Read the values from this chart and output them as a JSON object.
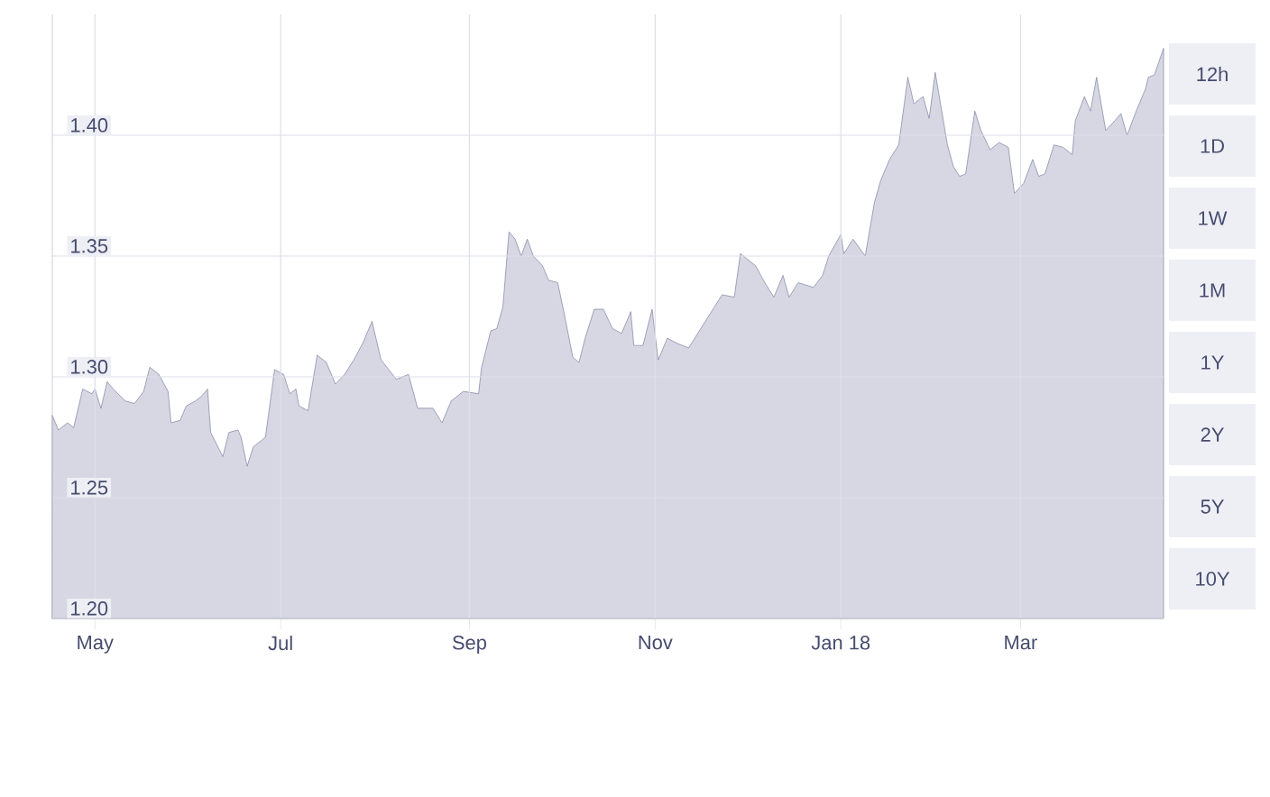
{
  "chart_data": {
    "type": "area",
    "color": "#6b7196",
    "xlim": [
      "2017-04-17",
      "2018-04-17"
    ],
    "xticks": [
      {
        "value": "2017-05-01",
        "label": "May"
      },
      {
        "value": "2017-07-01",
        "label": "Jul"
      },
      {
        "value": "2017-09-01",
        "label": "Sep"
      },
      {
        "value": "2017-11-01",
        "label": "Nov"
      },
      {
        "value": "2018-01-01",
        "label": "Jan 18"
      },
      {
        "value": "2018-03-01",
        "label": "Mar"
      }
    ],
    "ylim": [
      1.2,
      1.45
    ],
    "yticks": [
      {
        "value": 1.2,
        "label": "1.20"
      },
      {
        "value": 1.25,
        "label": "1.25"
      },
      {
        "value": 1.3,
        "label": "1.30"
      },
      {
        "value": 1.35,
        "label": "1.35"
      },
      {
        "value": 1.4,
        "label": "1.40"
      }
    ],
    "grid": true,
    "marker": "none",
    "annotations": [
      "12h",
      "1D",
      "1W",
      "1M",
      "1Y",
      "2Y",
      "5Y",
      "10Y"
    ],
    "x": [
      "2017-04-17",
      "2017-04-19",
      "2017-04-22",
      "2017-04-24",
      "2017-04-27",
      "2017-04-30",
      "2017-05-01",
      "2017-05-03",
      "2017-05-05",
      "2017-05-07",
      "2017-05-11",
      "2017-05-14",
      "2017-05-17",
      "2017-05-19",
      "2017-05-22",
      "2017-05-25",
      "2017-05-26",
      "2017-05-29",
      "2017-05-31",
      "2017-06-03",
      "2017-06-05",
      "2017-06-07",
      "2017-06-08",
      "2017-06-12",
      "2017-06-14",
      "2017-06-17",
      "2017-06-18",
      "2017-06-20",
      "2017-06-22",
      "2017-06-26",
      "2017-06-29",
      "2017-07-02",
      "2017-07-04",
      "2017-07-06",
      "2017-07-07",
      "2017-07-10",
      "2017-07-13",
      "2017-07-16",
      "2017-07-19",
      "2017-07-22",
      "2017-07-25",
      "2017-07-28",
      "2017-07-31",
      "2017-08-03",
      "2017-08-08",
      "2017-08-12",
      "2017-08-15",
      "2017-08-20",
      "2017-08-23",
      "2017-08-26",
      "2017-08-30",
      "2017-09-04",
      "2017-09-05",
      "2017-09-08",
      "2017-09-10",
      "2017-09-12",
      "2017-09-14",
      "2017-09-16",
      "2017-09-18",
      "2017-09-20",
      "2017-09-22",
      "2017-09-25",
      "2017-09-27",
      "2017-09-30",
      "2017-10-02",
      "2017-10-05",
      "2017-10-07",
      "2017-10-09",
      "2017-10-12",
      "2017-10-15",
      "2017-10-18",
      "2017-10-21",
      "2017-10-24",
      "2017-10-25",
      "2017-10-28",
      "2017-10-31",
      "2017-11-02",
      "2017-11-05",
      "2017-11-08",
      "2017-11-12",
      "2017-11-17",
      "2017-11-23",
      "2017-11-27",
      "2017-11-29",
      "2017-12-04",
      "2017-12-07",
      "2017-12-10",
      "2017-12-13",
      "2017-12-15",
      "2017-12-18",
      "2017-12-23",
      "2017-12-26",
      "2017-12-28",
      "2018-01-01",
      "2018-01-02",
      "2018-01-05",
      "2018-01-09",
      "2018-01-12",
      "2018-01-14",
      "2018-01-17",
      "2018-01-20",
      "2018-01-23",
      "2018-01-25",
      "2018-01-28",
      "2018-01-30",
      "2018-02-01",
      "2018-02-03",
      "2018-02-05",
      "2018-02-07",
      "2018-02-09",
      "2018-02-11",
      "2018-02-14",
      "2018-02-16",
      "2018-02-19",
      "2018-02-22",
      "2018-02-25",
      "2018-02-27",
      "2018-03-02",
      "2018-03-05",
      "2018-03-07",
      "2018-03-09",
      "2018-03-12",
      "2018-03-15",
      "2018-03-18",
      "2018-03-19",
      "2018-03-22",
      "2018-03-24",
      "2018-03-26",
      "2018-03-29",
      "2018-04-01",
      "2018-04-03",
      "2018-04-05",
      "2018-04-08",
      "2018-04-11",
      "2018-04-12",
      "2018-04-14",
      "2018-04-17"
    ],
    "values": [
      1.284,
      1.278,
      1.281,
      1.279,
      1.295,
      1.293,
      1.295,
      1.287,
      1.298,
      1.295,
      1.29,
      1.289,
      1.294,
      1.304,
      1.301,
      1.294,
      1.281,
      1.282,
      1.288,
      1.29,
      1.292,
      1.295,
      1.277,
      1.267,
      1.277,
      1.278,
      1.275,
      1.263,
      1.271,
      1.275,
      1.303,
      1.301,
      1.293,
      1.295,
      1.288,
      1.286,
      1.309,
      1.306,
      1.297,
      1.301,
      1.307,
      1.314,
      1.323,
      1.307,
      1.299,
      1.301,
      1.287,
      1.287,
      1.281,
      1.29,
      1.294,
      1.293,
      1.304,
      1.319,
      1.32,
      1.329,
      1.36,
      1.357,
      1.35,
      1.357,
      1.35,
      1.346,
      1.34,
      1.339,
      1.327,
      1.308,
      1.306,
      1.316,
      1.328,
      1.328,
      1.32,
      1.318,
      1.327,
      1.313,
      1.313,
      1.328,
      1.307,
      1.316,
      1.314,
      1.312,
      1.322,
      1.334,
      1.333,
      1.351,
      1.346,
      1.339,
      1.333,
      1.342,
      1.333,
      1.339,
      1.337,
      1.342,
      1.35,
      1.359,
      1.351,
      1.357,
      1.35,
      1.372,
      1.381,
      1.39,
      1.396,
      1.424,
      1.413,
      1.416,
      1.407,
      1.426,
      1.411,
      1.396,
      1.387,
      1.383,
      1.384,
      1.41,
      1.402,
      1.394,
      1.397,
      1.395,
      1.376,
      1.38,
      1.39,
      1.383,
      1.384,
      1.396,
      1.395,
      1.392,
      1.406,
      1.416,
      1.41,
      1.424,
      1.402,
      1.406,
      1.409,
      1.4,
      1.41,
      1.419,
      1.424,
      1.425,
      1.436
    ]
  }
}
